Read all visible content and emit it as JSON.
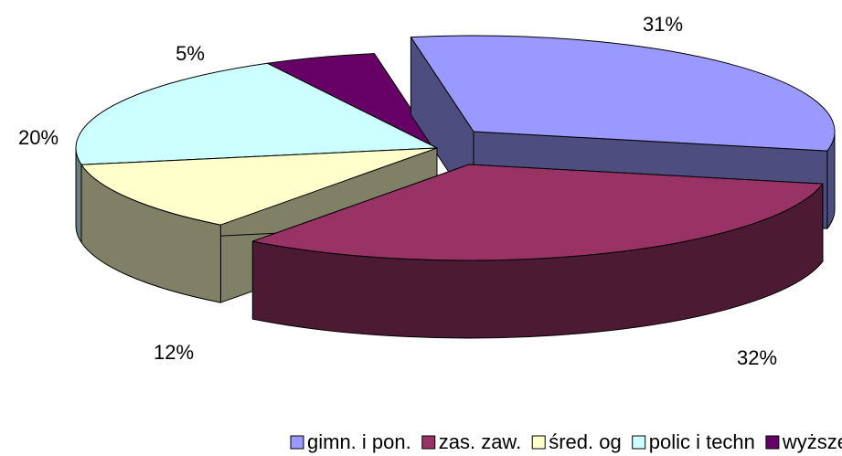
{
  "chart_data": {
    "type": "pie3d",
    "categories": [
      "gimn. i pon.",
      "zas. zaw.",
      "śred. og",
      "polic i techn",
      "wyższe"
    ],
    "values": [
      31,
      32,
      12,
      20,
      5
    ],
    "value_labels": [
      "31%",
      "32%",
      "12%",
      "20%",
      "5%"
    ],
    "colors": [
      "#9999ff",
      "#993366",
      "#ffffcc",
      "#ccffff",
      "#660066"
    ],
    "legend": "bottom"
  }
}
